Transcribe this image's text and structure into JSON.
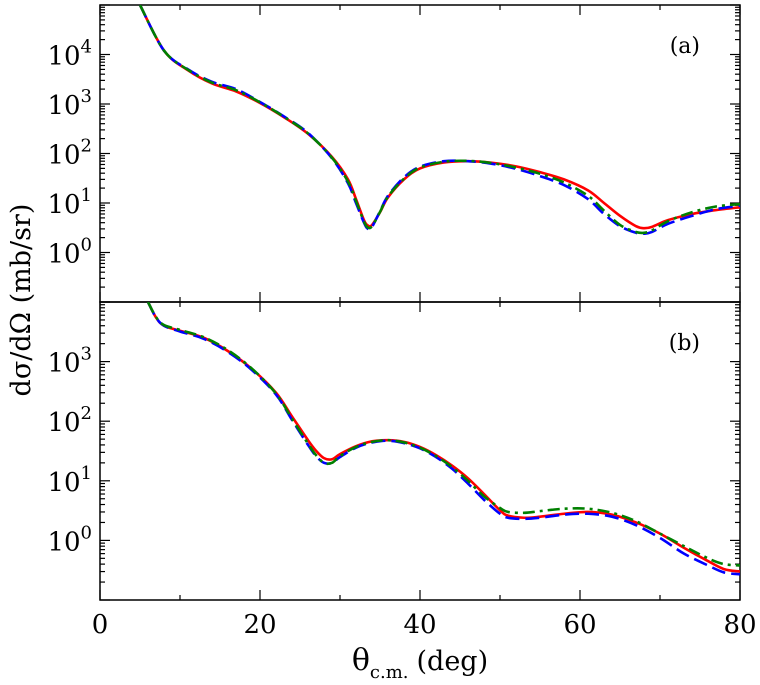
{
  "chart_data": [
    {
      "type": "line",
      "panel_label": "(a)",
      "ylog": true,
      "xlim": [
        0,
        80
      ],
      "ylim": [
        0.1,
        100000
      ],
      "x_ticks": [
        0,
        20,
        40,
        60,
        80
      ],
      "y_ticks": [
        {
          "value": 1,
          "base": "10",
          "exp": "0"
        },
        {
          "value": 10,
          "base": "10",
          "exp": "1"
        },
        {
          "value": 100,
          "base": "10",
          "exp": "2"
        },
        {
          "value": 1000,
          "base": "10",
          "exp": "3"
        },
        {
          "value": 10000,
          "base": "10",
          "exp": "4"
        }
      ],
      "grid": false,
      "series": [
        {
          "color": "#ff0000",
          "style": "solid",
          "x": [
            5,
            8,
            11,
            14,
            17,
            20,
            23,
            26,
            29,
            31,
            32,
            33,
            33.5,
            34,
            35,
            36,
            38,
            40,
            43,
            46,
            49,
            52,
            55,
            58,
            61,
            63,
            65,
            67,
            68,
            69,
            71,
            74,
            77,
            80
          ],
          "y": [
            100000,
            12000,
            4800,
            2600,
            1800,
            1050,
            540,
            250,
            85,
            30,
            12,
            4.5,
            3.5,
            3.6,
            6.5,
            13,
            30,
            50,
            66,
            70,
            65,
            55,
            42,
            30,
            18,
            10,
            5.5,
            3.4,
            3.1,
            3.3,
            4.5,
            6,
            7.2,
            8.2
          ]
        },
        {
          "color": "#0000ff",
          "style": "dashed",
          "x": [
            5,
            8,
            11,
            14,
            17,
            20,
            23,
            26,
            29,
            31,
            32,
            33,
            33.5,
            34,
            35,
            36,
            38,
            40,
            43,
            46,
            49,
            52,
            55,
            58,
            61,
            63,
            65,
            67,
            68,
            69,
            71,
            74,
            77,
            80
          ],
          "y": [
            100000,
            12000,
            5000,
            2800,
            2000,
            1100,
            560,
            260,
            80,
            25,
            10,
            4,
            3,
            3.3,
            6.8,
            14,
            33,
            54,
            70,
            70,
            62,
            49,
            35,
            23,
            12,
            6,
            3.4,
            2.5,
            2.4,
            2.6,
            3.8,
            5.5,
            7.5,
            8.8
          ]
        },
        {
          "color": "#008000",
          "style": "dashdot",
          "x": [
            5,
            8,
            11,
            14,
            17,
            20,
            23,
            26,
            29,
            31,
            32,
            33,
            33.5,
            34,
            35,
            36,
            38,
            40,
            43,
            46,
            49,
            52,
            55,
            58,
            61,
            63,
            65,
            67,
            68,
            69,
            71,
            74,
            77,
            80
          ],
          "y": [
            100000,
            12000,
            4900,
            2700,
            1900,
            1080,
            550,
            255,
            82,
            27,
            11,
            4.2,
            3.2,
            3.4,
            6.6,
            13.5,
            31,
            52,
            68,
            71,
            64,
            52,
            39,
            26,
            14,
            7,
            3.6,
            2.6,
            2.5,
            2.8,
            4.3,
            6.5,
            8.5,
            9.5
          ]
        }
      ]
    },
    {
      "type": "line",
      "panel_label": "(b)",
      "ylog": true,
      "xlim": [
        0,
        80
      ],
      "ylim": [
        0.1,
        10000
      ],
      "x_ticks": [
        0,
        20,
        40,
        60,
        80
      ],
      "y_ticks": [
        {
          "value": 1,
          "base": "10",
          "exp": "0"
        },
        {
          "value": 10,
          "base": "10",
          "exp": "1"
        },
        {
          "value": 100,
          "base": "10",
          "exp": "2"
        },
        {
          "value": 1000,
          "base": "10",
          "exp": "3"
        }
      ],
      "grid": false,
      "series": [
        {
          "color": "#ff0000",
          "style": "solid",
          "x": [
            6,
            7,
            8,
            10,
            13,
            16,
            19,
            22,
            24,
            26,
            27,
            28,
            29,
            30,
            32,
            34,
            36,
            38,
            40,
            42,
            44,
            46,
            48,
            50,
            51,
            53,
            55,
            58,
            61,
            64,
            67,
            70,
            73,
            76,
            78,
            80
          ],
          "y": [
            10000,
            5500,
            4000,
            3300,
            2500,
            1500,
            750,
            300,
            120,
            48,
            32,
            24,
            23,
            28,
            38,
            46,
            48,
            45,
            37,
            27,
            18,
            11,
            6,
            3.2,
            2.6,
            2.4,
            2.5,
            2.8,
            3,
            2.7,
            2,
            1.3,
            0.75,
            0.45,
            0.33,
            0.3
          ]
        },
        {
          "color": "#0000ff",
          "style": "dashed",
          "x": [
            6,
            7,
            8,
            10,
            13,
            16,
            19,
            22,
            24,
            26,
            27,
            28,
            29,
            30,
            32,
            34,
            36,
            38,
            40,
            42,
            44,
            46,
            48,
            50,
            51,
            53,
            55,
            58,
            61,
            64,
            67,
            70,
            73,
            76,
            78,
            80
          ],
          "y": [
            10000,
            5500,
            4000,
            3200,
            2400,
            1450,
            720,
            280,
            105,
            40,
            26,
            20,
            20,
            25,
            36,
            44,
            47,
            43,
            35,
            25,
            16,
            9,
            4.8,
            2.8,
            2.4,
            2.3,
            2.4,
            2.7,
            2.8,
            2.5,
            1.8,
            1.1,
            0.6,
            0.38,
            0.29,
            0.27
          ]
        },
        {
          "color": "#008000",
          "style": "dashdot",
          "x": [
            6,
            7,
            8,
            10,
            13,
            16,
            19,
            22,
            24,
            26,
            27,
            28,
            29,
            30,
            32,
            34,
            36,
            38,
            40,
            42,
            44,
            46,
            48,
            50,
            51,
            53,
            55,
            58,
            61,
            64,
            67,
            70,
            73,
            76,
            78,
            80
          ],
          "y": [
            10000,
            5600,
            4100,
            3400,
            2550,
            1550,
            760,
            290,
            110,
            42,
            27,
            20,
            20,
            26,
            37,
            45,
            48,
            44,
            36,
            26,
            17,
            10,
            5.5,
            3.5,
            3,
            2.9,
            3.1,
            3.4,
            3.4,
            2.9,
            2.1,
            1.3,
            0.8,
            0.5,
            0.4,
            0.38
          ]
        }
      ]
    }
  ],
  "axes": {
    "xlabel_main": "θ",
    "xlabel_sub": "c.m.",
    "xlabel_unit": "(deg)",
    "ylabel": "dσ/dΩ (mb/sr)"
  }
}
